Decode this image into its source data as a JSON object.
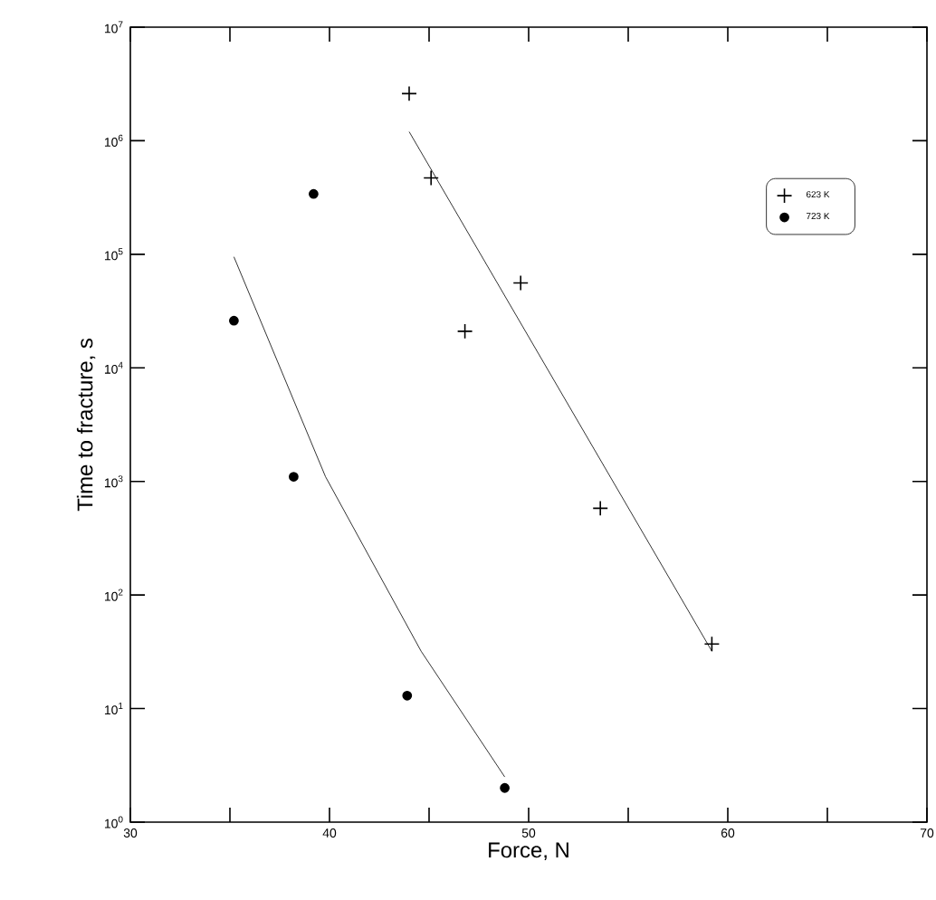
{
  "chart_data": {
    "type": "scatter",
    "xlabel": "Force, N",
    "ylabel": "Time to fracture, s",
    "xlim": [
      30,
      70
    ],
    "ylim": [
      1,
      10000000
    ],
    "log": "y",
    "xticks": [
      30,
      {
        "value": 35,
        "label": null
      },
      40,
      {
        "value": 45,
        "label": null
      },
      50,
      {
        "value": 55,
        "label": null
      },
      60,
      {
        "value": 65,
        "label": null
      },
      70
    ],
    "yticks": [
      {
        "value": 1,
        "label": "10$^{0}$"
      },
      {
        "value": 10,
        "label": "10$^{1}$"
      },
      {
        "value": 100,
        "label": "10$^{2}$"
      },
      {
        "value": 1000,
        "label": "10$^{3}$"
      },
      {
        "value": 10000,
        "label": "10$^{4}$"
      },
      {
        "value": 100000,
        "label": "10$^{5}$"
      },
      {
        "value": 1000000,
        "label": "10$^{6}$"
      },
      {
        "value": 10000000,
        "label": "10$^{7}$"
      }
    ],
    "legend": "top right",
    "grid": false,
    "series": [
      {
        "name": "623 K",
        "marker": "cross",
        "color": "#000000",
        "x": [
          44.0,
          45.1,
          46.8,
          49.6,
          53.6,
          59.2
        ],
        "values": [
          2600000,
          470000,
          21000,
          56000,
          580,
          37
        ]
      },
      {
        "name": "723 K",
        "marker": "circle",
        "color": "#000000",
        "x": [
          35.2,
          38.2,
          39.2,
          43.9,
          48.8
        ],
        "values": [
          26000,
          1100,
          340000,
          13,
          2.0
        ]
      },
      {
        "type": "line",
        "color": "#000000",
        "x": [
          44.0,
          59.2
        ],
        "values": [
          1200000,
          32
        ]
      },
      {
        "type": "line",
        "color": "#000000",
        "x": [
          35.2,
          39.8,
          44.6,
          48.8
        ],
        "values": [
          95000,
          1100,
          32,
          2.5
        ]
      }
    ]
  }
}
